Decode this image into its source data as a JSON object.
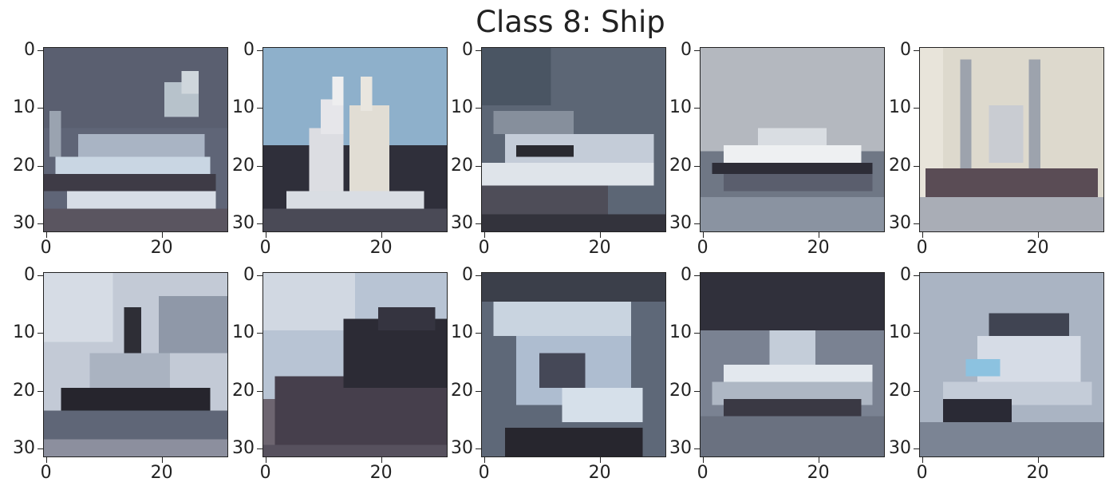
{
  "figure": {
    "title": "Class 8: Ship"
  },
  "axis": {
    "y_ticks": [
      "0",
      "10",
      "20",
      "30"
    ],
    "x_ticks": [
      "0",
      "20"
    ]
  },
  "images": [
    {
      "subject": "cargo ship",
      "scene": "ship-dusk"
    },
    {
      "subject": "sailboat",
      "scene": "sailboat"
    },
    {
      "subject": "motor yacht",
      "scene": "yacht-dark"
    },
    {
      "subject": "motor yacht",
      "scene": "yacht-grey"
    },
    {
      "subject": "ship with masts",
      "scene": "masts-pale"
    },
    {
      "subject": "tugboat",
      "scene": "tug"
    },
    {
      "subject": "ship hull close-up",
      "scene": "hull-closeup"
    },
    {
      "subject": "boat close-up",
      "scene": "boat-closeup"
    },
    {
      "subject": "speedboat",
      "scene": "speedboat"
    },
    {
      "subject": "cabin boat",
      "scene": "cabin-boat"
    }
  ]
}
